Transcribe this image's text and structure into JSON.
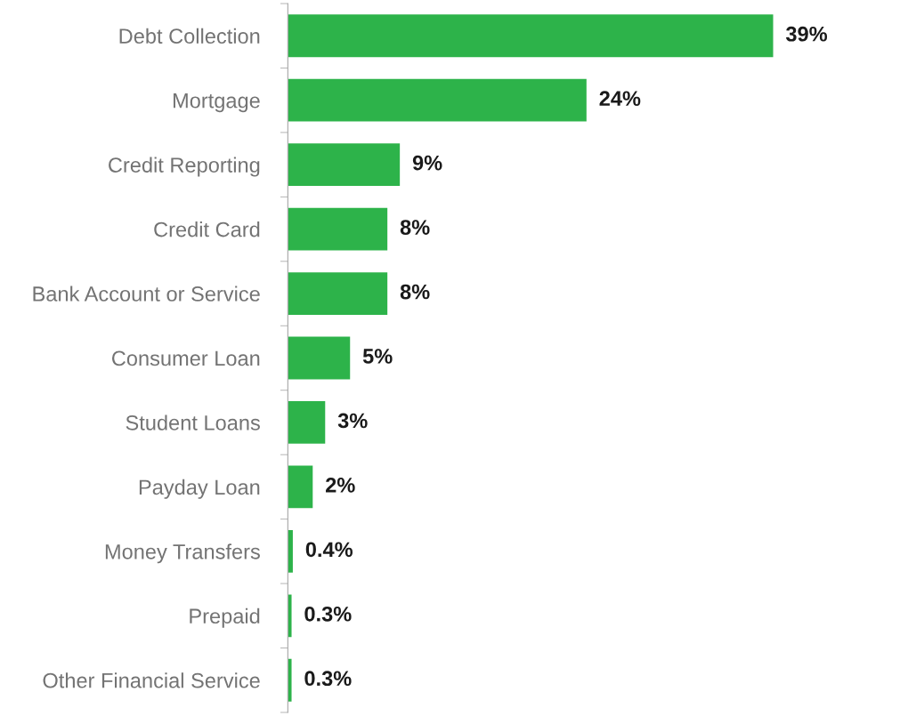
{
  "chart_data": {
    "type": "bar",
    "orientation": "horizontal",
    "categories": [
      "Debt Collection",
      "Mortgage",
      "Credit Reporting",
      "Credit Card",
      "Bank Account or Service",
      "Consumer Loan",
      "Student Loans",
      "Payday Loan",
      "Money Transfers",
      "Prepaid",
      "Other Financial Service"
    ],
    "values": [
      39,
      24,
      9,
      8,
      8,
      5,
      3,
      2,
      0.4,
      0.3,
      0.3
    ],
    "value_labels": [
      "39%",
      "24%",
      "9%",
      "8%",
      "8%",
      "5%",
      "3%",
      "2%",
      "0.4%",
      "0.3%",
      "0.3%"
    ],
    "color": "#2db34a",
    "grid": false,
    "legend": false
  }
}
